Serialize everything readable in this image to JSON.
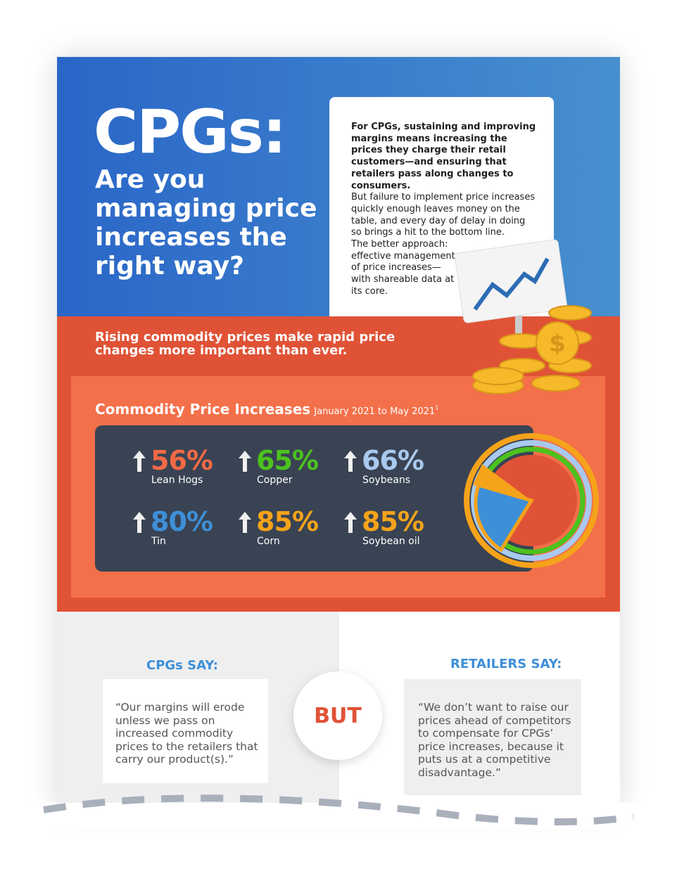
{
  "header": {
    "title": "CPGs:",
    "subtitle": "Are you managing price increases the right way?"
  },
  "intro": {
    "lead": "For CPGs, sustaining and improving margins means increasing the prices they charge their retail customers—and ensuring that retailers pass along changes to consumers.",
    "body": "But failure to implement price increases quickly enough leaves money on the table, and every day of delay in doing so brings a hit to the bottom line.",
    "closing": "The better approach: effective management of price increases—with shareable data at its core."
  },
  "banner": "Rising commodity prices make rapid price changes more important than ever.",
  "commodities": {
    "title": "Commodity Price Increases",
    "period": "January 2021 to May 2021",
    "footnote": "1",
    "items": [
      {
        "value": "56%",
        "label": "Lean Hogs",
        "color": "#f26a45"
      },
      {
        "value": "65%",
        "label": "Copper",
        "color": "#4cc21e"
      },
      {
        "value": "66%",
        "label": "Soybeans",
        "color": "#a9c9ee"
      },
      {
        "value": "80%",
        "label": "Tin",
        "color": "#3d8fd8"
      },
      {
        "value": "85%",
        "label": "Corn",
        "color": "#f5a31a"
      },
      {
        "value": "85%",
        "label": "Soybean oil",
        "color": "#f5a31a"
      }
    ]
  },
  "cpgs": {
    "heading": "CPGs SAY:",
    "quote": "“Our margins will erode unless we pass on increased commodity prices to the retailers that carry our product(s).”"
  },
  "divider": "BUT",
  "retailers": {
    "heading": "RETAILERS SAY:",
    "quote": "“We don’t want to raise our prices ahead of competitors to compensate for CPGs’ price increases, because it puts us at a competitive disadvantage.”"
  }
}
